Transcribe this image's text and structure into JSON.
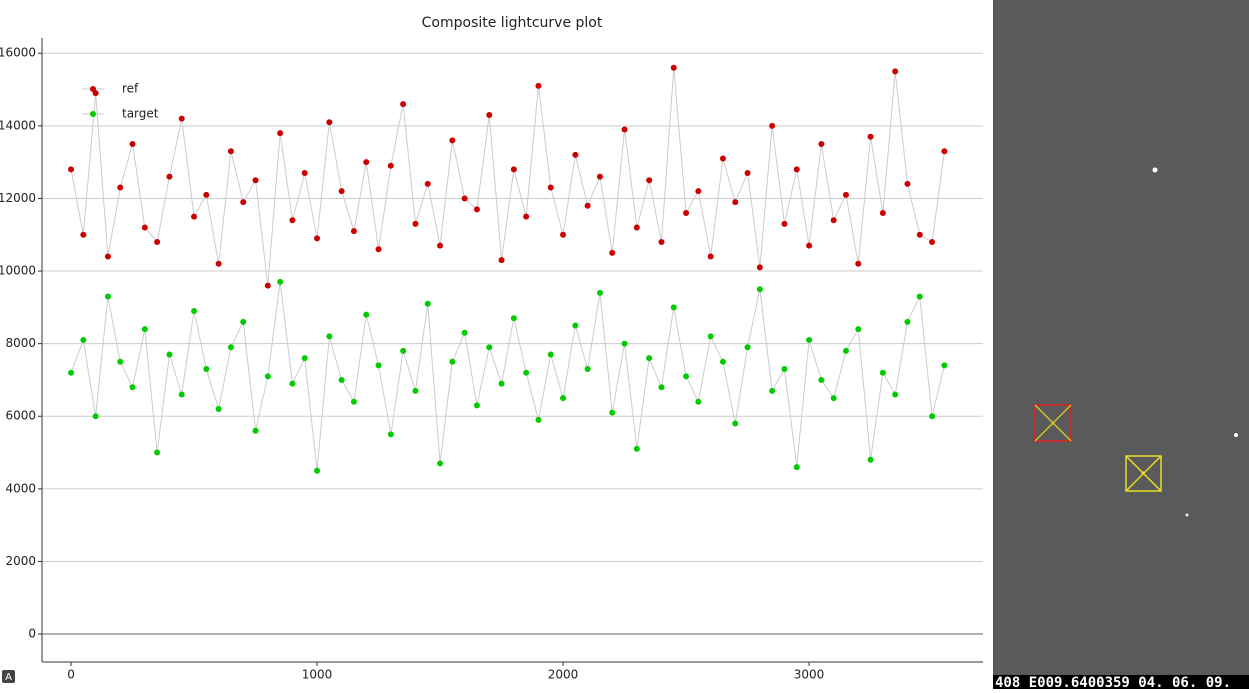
{
  "chart_data": {
    "type": "scatter",
    "title": "Composite lightcurve plot",
    "x": [
      0,
      50,
      100,
      150,
      200,
      250,
      300,
      350,
      400,
      450,
      500,
      550,
      600,
      650,
      700,
      750,
      800,
      850,
      900,
      950,
      1000,
      1050,
      1100,
      1150,
      1200,
      1250,
      1300,
      1350,
      1400,
      1450,
      1500,
      1550,
      1600,
      1650,
      1700,
      1750,
      1800,
      1850,
      1900,
      1950,
      2000,
      2050,
      2100,
      2150,
      2200,
      2250,
      2300,
      2350,
      2400,
      2450,
      2500,
      2550,
      2600,
      2650,
      2700,
      2750,
      2800,
      2850,
      2900,
      2950,
      3000,
      3050,
      3100,
      3150,
      3200,
      3250,
      3300,
      3350,
      3400,
      3450,
      3500,
      3550
    ],
    "series": [
      {
        "name": "ref",
        "color": "#cc0000",
        "line_color": "#cccccc",
        "values": [
          12800,
          11000,
          14900,
          10400,
          12300,
          13500,
          11200,
          10800,
          12600,
          14200,
          11500,
          12100,
          10200,
          13300,
          11900,
          12500,
          9600,
          13800,
          11400,
          12700,
          10900,
          14100,
          12200,
          11100,
          13000,
          10600,
          12900,
          14600,
          11300,
          12400,
          10700,
          13600,
          12000,
          11700,
          14300,
          10300,
          12800,
          11500,
          15100,
          12300,
          11000,
          13200,
          11800,
          12600,
          10500,
          13900,
          11200,
          12500,
          10800,
          15600,
          11600,
          12200,
          10400,
          13100,
          11900,
          12700,
          10100,
          14000,
          11300,
          12800,
          10700,
          13500,
          11400,
          12100,
          10200,
          13700,
          11600,
          15500,
          12400,
          11000,
          10800,
          13300
        ]
      },
      {
        "name": "target",
        "color": "#00cc00",
        "line_color": "#cccccc",
        "values": [
          7200,
          8100,
          6000,
          9300,
          7500,
          6800,
          8400,
          5000,
          7700,
          6600,
          8900,
          7300,
          6200,
          7900,
          8600,
          5600,
          7100,
          9700,
          6900,
          7600,
          4500,
          8200,
          7000,
          6400,
          8800,
          7400,
          5500,
          7800,
          6700,
          9100,
          4700,
          7500,
          8300,
          6300,
          7900,
          6900,
          8700,
          7200,
          5900,
          7700,
          6500,
          8500,
          7300,
          9400,
          6100,
          8000,
          5100,
          7600,
          6800,
          9000,
          7100,
          6400,
          8200,
          7500,
          5800,
          7900,
          9500,
          6700,
          7300,
          4600,
          8100,
          7000,
          6500,
          7800,
          8400,
          4800,
          7200,
          6600,
          8600,
          9300,
          6000,
          7400
        ]
      }
    ],
    "xlim": [
      -118,
      3707
    ],
    "ylim": [
      -770,
      16420
    ],
    "xticks": [
      0,
      1000,
      2000,
      3000
    ],
    "yticks": [
      0,
      2000,
      4000,
      6000,
      8000,
      10000,
      12000,
      14000,
      16000
    ],
    "grid": true,
    "legend": "upper left"
  },
  "status_bar": "408 E009.6400359 04. 06. 09."
}
